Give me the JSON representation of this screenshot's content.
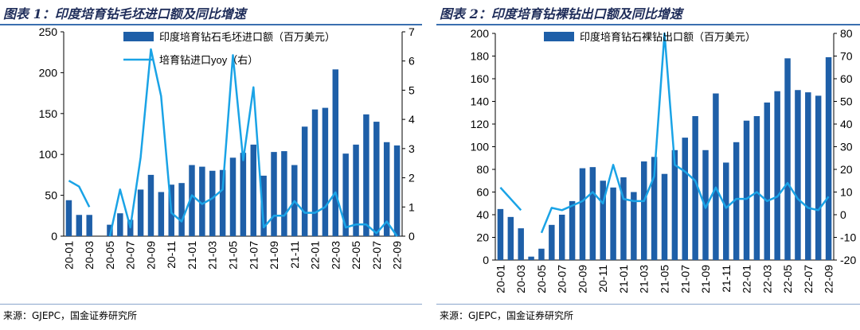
{
  "colors": {
    "bar": "#1e5fa8",
    "line": "#1aa3e6",
    "axis": "#000000",
    "title": "#1f2d5a",
    "rule": "#3a6fb0"
  },
  "chart_data": [
    {
      "type": "bar+line",
      "title": "图表 1：印度培育钻毛坯进口额及同比增速",
      "source": "来源：GJEPC，国金证券研究所",
      "categories": [
        "20-01",
        "20-02",
        "20-03",
        "20-04",
        "20-05",
        "20-06",
        "20-07",
        "20-08",
        "20-09",
        "20-10",
        "20-11",
        "20-12",
        "21-01",
        "21-02",
        "21-03",
        "21-04",
        "21-05",
        "21-06",
        "21-07",
        "21-08",
        "21-09",
        "21-10",
        "21-11",
        "21-12",
        "22-01",
        "22-02",
        "22-03",
        "22-04",
        "22-05",
        "22-06",
        "22-07",
        "22-08",
        "22-09"
      ],
      "tick_labels": [
        "20-01",
        "20-03",
        "20-05",
        "20-07",
        "20-09",
        "20-11",
        "21-01",
        "21-03",
        "21-05",
        "21-07",
        "21-09",
        "21-11",
        "22-01",
        "22-03",
        "22-05",
        "22-07",
        "22-09"
      ],
      "series": [
        {
          "name": "印度培育钻石毛坯进口额（百万美元）",
          "kind": "bar",
          "axis": "left",
          "values": [
            44,
            26,
            26,
            0,
            14,
            28,
            20,
            57,
            75,
            54,
            63,
            65,
            87,
            85,
            80,
            81,
            96,
            102,
            112,
            74,
            103,
            104,
            87,
            134,
            155,
            157,
            204,
            101,
            112,
            149,
            140,
            115,
            111
          ]
        },
        {
          "name": "培育钻进口yoy（右）",
          "kind": "line",
          "axis": "right",
          "values": [
            1.9,
            1.7,
            1.0,
            null,
            0.0,
            1.6,
            0.3,
            2.7,
            6.4,
            4.8,
            0.8,
            0.5,
            1.4,
            1.1,
            1.3,
            1.6,
            6.2,
            2.6,
            5.1,
            0.3,
            0.7,
            0.7,
            1.2,
            0.8,
            0.8,
            1.0,
            1.5,
            0.3,
            0.4,
            0.4,
            0.1,
            0.5,
            0.0
          ]
        }
      ],
      "ylim_left": [
        0,
        250
      ],
      "yticks_left": [
        0,
        50,
        100,
        150,
        200,
        250
      ],
      "ylim_right": [
        0,
        7
      ],
      "yticks_right": [
        0,
        1,
        2,
        3,
        4,
        5,
        6,
        7
      ]
    },
    {
      "type": "bar+line",
      "title": "图表 2：印度培育钻裸钻出口额及同比增速",
      "source": "来源：GJEPC，国金证券研究所",
      "categories": [
        "20-01",
        "20-02",
        "20-03",
        "20-04",
        "20-05",
        "20-06",
        "20-07",
        "20-08",
        "20-09",
        "20-10",
        "20-11",
        "20-12",
        "21-01",
        "21-02",
        "21-03",
        "21-04",
        "21-05",
        "21-06",
        "21-07",
        "21-08",
        "21-09",
        "21-10",
        "21-11",
        "21-12",
        "22-01",
        "22-02",
        "22-03",
        "22-04",
        "22-05",
        "22-06",
        "22-07",
        "22-08",
        "22-09"
      ],
      "tick_labels": [
        "20-01",
        "20-03",
        "20-05",
        "20-07",
        "20-09",
        "20-11",
        "21-01",
        "21-03",
        "21-05",
        "21-07",
        "21-09",
        "21-11",
        "22-01",
        "22-03",
        "22-05",
        "22-07",
        "22-09"
      ],
      "series": [
        {
          "name": "印度培育钻石裸钻出口额（百万美元）",
          "kind": "bar",
          "axis": "left",
          "values": [
            45,
            38,
            28,
            3,
            10,
            31,
            40,
            52,
            81,
            82,
            70,
            64,
            73,
            60,
            87,
            91,
            76,
            97,
            108,
            127,
            97,
            147,
            86,
            104,
            123,
            127,
            139,
            149,
            178,
            150,
            148,
            145,
            179
          ]
        },
        {
          "name": "培育钻出口yoy（右）",
          "kind": "line",
          "axis": "right",
          "values": [
            12,
            7,
            2,
            null,
            -8,
            3,
            2,
            4,
            6,
            10,
            5,
            22,
            7,
            6,
            6,
            17,
            80,
            22,
            19,
            15,
            3,
            12,
            3,
            7,
            7,
            10,
            6,
            8,
            14,
            7,
            3,
            2,
            8
          ]
        }
      ],
      "ylim_left": [
        0,
        200
      ],
      "yticks_left": [
        0,
        20,
        40,
        60,
        80,
        100,
        120,
        140,
        160,
        180,
        200
      ],
      "ylim_right": [
        -20,
        80
      ],
      "yticks_right": [
        -20,
        -10,
        0,
        10,
        20,
        30,
        40,
        50,
        60,
        70,
        80
      ]
    }
  ]
}
